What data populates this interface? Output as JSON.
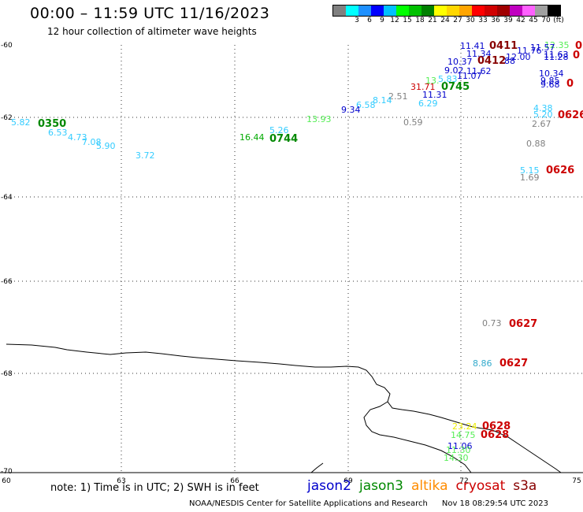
{
  "header": {
    "title": "00:00 – 11:59 UTC 11/16/2023",
    "subtitle": "12 hour collection of altimeter wave heights"
  },
  "colorbar": {
    "colors": [
      "#808080",
      "#00ffff",
      "#1e90ff",
      "#0000ff",
      "#00c0ff",
      "#00ff00",
      "#00c000",
      "#008000",
      "#ffff00",
      "#ffd700",
      "#ffa500",
      "#ff0000",
      "#d00000",
      "#a00000",
      "#c000c0",
      "#ff60ff",
      "#a0a0a0",
      "#000000"
    ],
    "labels": [
      {
        "text": "3",
        "i": 1
      },
      {
        "text": "6",
        "i": 2
      },
      {
        "text": "9",
        "i": 3
      },
      {
        "text": "12",
        "i": 4
      },
      {
        "text": "15",
        "i": 5
      },
      {
        "text": "18",
        "i": 6
      },
      {
        "text": "21",
        "i": 7
      },
      {
        "text": "24",
        "i": 8
      },
      {
        "text": "27",
        "i": 9
      },
      {
        "text": "30",
        "i": 10
      },
      {
        "text": "33",
        "i": 11
      },
      {
        "text": "36",
        "i": 12
      },
      {
        "text": "39",
        "i": 13
      },
      {
        "text": "42",
        "i": 14
      },
      {
        "text": "45",
        "i": 15
      },
      {
        "text": "70",
        "i": 16
      },
      {
        "text": "(ft)",
        "i": 17
      }
    ]
  },
  "axes": {
    "lat_labels": [
      "-60",
      "-62",
      "-64",
      "-66",
      "-68",
      "-70"
    ],
    "lon_labels": [
      "60",
      "63",
      "66",
      "69",
      "72",
      "75"
    ]
  },
  "observations": [
    {
      "text": "11.41",
      "color": "#0000cc"
    },
    {
      "text": "0411",
      "color": "#880000"
    },
    {
      "text": "12.35",
      "color": "#55ee55"
    },
    {
      "text": "11.57",
      "color": "#0000cc"
    },
    {
      "text": "0",
      "color": "#cc0000"
    },
    {
      "text": "11.34",
      "color": "#0000cc"
    },
    {
      "text": "11.76",
      "color": "#0000cc"
    },
    {
      "text": "11.63",
      "color": "#0000cc"
    },
    {
      "text": "0",
      "color": "#cc0000"
    },
    {
      "text": "12.00",
      "color": "#0000cc"
    },
    {
      "text": "11.28",
      "color": "#0000cc"
    },
    {
      "text": "10.37",
      "color": "#0000cc"
    },
    {
      "text": "0412",
      "color": "#880000"
    },
    {
      "text": "88",
      "color": "#0000cc"
    },
    {
      "text": "9.02",
      "color": "#0000cc"
    },
    {
      "text": "11.62",
      "color": "#0000cc"
    },
    {
      "text": "11.07",
      "color": "#0000cc"
    },
    {
      "text": "10.34",
      "color": "#0000cc"
    },
    {
      "text": "9.85",
      "color": "#0000cc"
    },
    {
      "text": "9.68",
      "color": "#0000cc"
    },
    {
      "text": "0",
      "color": "#cc0000"
    },
    {
      "text": "13.",
      "color": "#55ee55"
    },
    {
      "text": "5.83",
      "color": "#33ccff"
    },
    {
      "text": "31.71",
      "color": "#cc0000"
    },
    {
      "text": "0745",
      "color": "#008800"
    },
    {
      "text": "11.31",
      "color": "#0000cc"
    },
    {
      "text": "2.51",
      "color": "#808080"
    },
    {
      "text": "8.14",
      "color": "#33ccff"
    },
    {
      "text": "6.58",
      "color": "#33ccff"
    },
    {
      "text": "6.29",
      "color": "#33ccff"
    },
    {
      "text": "9.34",
      "color": "#0000cc"
    },
    {
      "text": "4.38",
      "color": "#33ccff"
    },
    {
      "text": "5.20",
      "color": "#33ccff"
    },
    {
      "text": "0626",
      "color": "#cc0000"
    },
    {
      "text": "2.67",
      "color": "#808080"
    },
    {
      "text": "0.59",
      "color": "#808080"
    },
    {
      "text": "13.93",
      "color": "#55ee55"
    },
    {
      "text": "5.82",
      "color": "#33ccff"
    },
    {
      "text": "0350",
      "color": "#008800"
    },
    {
      "text": "6.53",
      "color": "#33ccff"
    },
    {
      "text": "4.73",
      "color": "#33ccff"
    },
    {
      "text": "7.08",
      "color": "#33ccff"
    },
    {
      "text": "5.90",
      "color": "#33ccff"
    },
    {
      "text": "3.72",
      "color": "#33ccff"
    },
    {
      "text": "5.26",
      "color": "#33ccff"
    },
    {
      "text": "16.44",
      "color": "#00aa00"
    },
    {
      "text": "0744",
      "color": "#008800"
    },
    {
      "text": "0.88",
      "color": "#808080"
    },
    {
      "text": "5.15",
      "color": "#33ccff"
    },
    {
      "text": "0626",
      "color": "#cc0000"
    },
    {
      "text": "1.69",
      "color": "#808080"
    },
    {
      "text": "0.73",
      "color": "#808080"
    },
    {
      "text": "0627",
      "color": "#cc0000"
    },
    {
      "text": "8.86",
      "color": "#33aacc"
    },
    {
      "text": "0627",
      "color": "#cc0000"
    },
    {
      "text": "23.24",
      "color": "#eeee00"
    },
    {
      "text": "0628",
      "color": "#cc0000"
    },
    {
      "text": "14.75",
      "color": "#55ee55"
    },
    {
      "text": "0628",
      "color": "#cc0000"
    },
    {
      "text": "11.06",
      "color": "#0000cc"
    },
    {
      "text": "11.30",
      "color": "#55ee55"
    },
    {
      "text": "14.30",
      "color": "#55ee55"
    }
  ],
  "footer": {
    "note": "note: 1) Time is in UTC; 2) SWH is in feet",
    "missions": [
      {
        "name": "jason2",
        "color": "#0000cc"
      },
      {
        "name": "jason3",
        "color": "#008800"
      },
      {
        "name": "altika",
        "color": "#ff8c00"
      },
      {
        "name": "cryosat",
        "color": "#cc0000"
      },
      {
        "name": "s3a",
        "color": "#880000"
      }
    ],
    "credit": "NOAA/NESDIS Center for Satellite Applications and Research",
    "timestamp": "Nov 18 08:29:54 UTC 2023"
  }
}
